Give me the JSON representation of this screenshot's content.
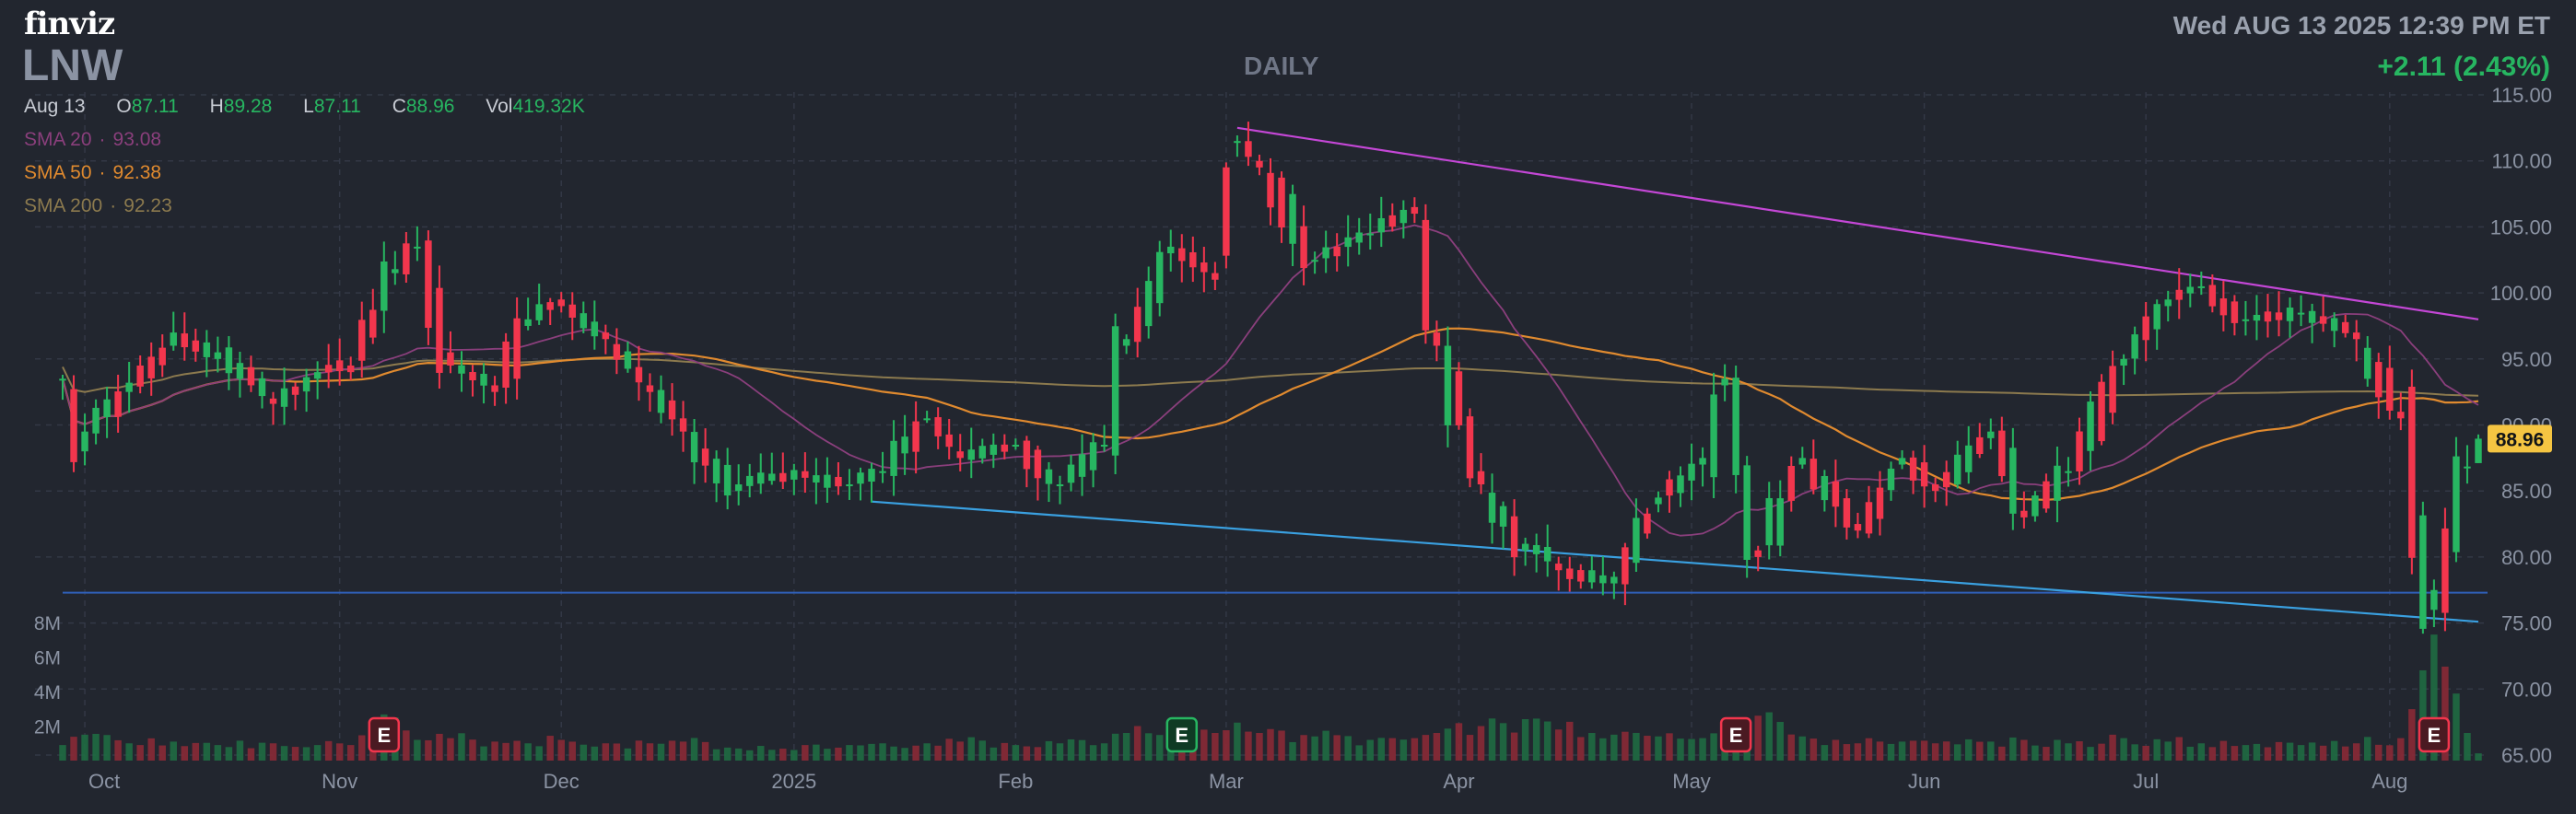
{
  "header": {
    "logo": "finviz",
    "ticker": "LNW",
    "period": "DAILY",
    "datetime": "Wed AUG 13 2025 12:39 PM ET",
    "change": "+2.11 (2.43%)"
  },
  "ohlc": {
    "date": "Aug 13",
    "open_label": "O",
    "open": "87.11",
    "high_label": "H",
    "high": "89.28",
    "low_label": "L",
    "low": "87.11",
    "close_label": "C",
    "close": "88.96",
    "vol_label": "Vol",
    "vol": "419.32K"
  },
  "indicators": {
    "sma20": {
      "label": "SMA 20",
      "value": "93.08"
    },
    "sma50": {
      "label": "SMA 50",
      "value": "92.38"
    },
    "sma200": {
      "label": "SMA 200",
      "value": "92.23"
    }
  },
  "colors": {
    "background": "#22262f",
    "up": "#27b661",
    "down": "#f2364d",
    "sma20": "#8a3f7c",
    "sma50": "#e08a2f",
    "sma200": "#8c7a4e",
    "resistance_trendline": "#c447d6",
    "support_trendline": "#3aa0e0",
    "horizontal_line": "#2f5fb8",
    "last_price_tag": "#f5c542"
  },
  "chart_data": {
    "type": "candlestick",
    "title": "LNW",
    "x_ticks": [
      "Oct",
      "Nov",
      "Dec",
      "2025",
      "Feb",
      "Mar",
      "Apr",
      "May",
      "Jun",
      "Jul",
      "Aug"
    ],
    "y_ticks": [
      "115.00",
      "110.00",
      "105.00",
      "100.00",
      "95.00",
      "90.00",
      "85.00",
      "80.00",
      "75.00",
      "70.00",
      "65.00"
    ],
    "ylim": [
      65,
      115
    ],
    "volume_ticks": [
      "8M",
      "6M",
      "4M",
      "2M"
    ],
    "volume_ylim": [
      0,
      8000000
    ],
    "last_price": "88.96",
    "earnings_marker_label": "E",
    "earnings_dates": [
      "2024-11-07",
      "2025-02-25",
      "2025-05-07",
      "2025-08-07"
    ],
    "grid": true,
    "anchors": [
      [
        "2024-09-27",
        93.5,
        93.5,
        0.9
      ],
      [
        "2024-10-01",
        88.0,
        89.5,
        1.5
      ],
      [
        "2024-10-07",
        92.5,
        93.2,
        1.0
      ],
      [
        "2024-10-11",
        96.0,
        97.0,
        1.1
      ],
      [
        "2024-10-17",
        95.0,
        95.5,
        0.9
      ],
      [
        "2024-10-24",
        92.0,
        91.6,
        1.0
      ],
      [
        "2024-10-30",
        93.5,
        94.0,
        0.9
      ],
      [
        "2024-11-04",
        94.5,
        94.0,
        0.9
      ],
      [
        "2024-11-08",
        101.5,
        101.8,
        2.5
      ],
      [
        "2024-11-12",
        103.5,
        103.5,
        1.2
      ],
      [
        "2024-11-15",
        95.5,
        94.5,
        1.3
      ],
      [
        "2024-11-21",
        93.0,
        92.5,
        1.1
      ],
      [
        "2024-11-26",
        97.5,
        98.0,
        1.0
      ],
      [
        "2024-12-02",
        99.5,
        99.0,
        1.2
      ],
      [
        "2024-12-06",
        97.0,
        96.5,
        1.0
      ],
      [
        "2024-12-12",
        93.0,
        92.5,
        1.0
      ],
      [
        "2024-12-17",
        90.5,
        89.5,
        1.1
      ],
      [
        "2024-12-24",
        85.0,
        85.5,
        0.7
      ],
      [
        "2025-01-03",
        86.5,
        86.0,
        0.9
      ],
      [
        "2025-01-10",
        85.5,
        85.5,
        0.9
      ],
      [
        "2025-01-15",
        86.5,
        86.5,
        1.0
      ],
      [
        "2025-01-22",
        90.5,
        90.5,
        1.0
      ],
      [
        "2025-01-27",
        88.0,
        87.5,
        1.1
      ],
      [
        "2025-02-03",
        88.5,
        88.5,
        0.9
      ],
      [
        "2025-02-07",
        85.5,
        85.5,
        1.0
      ],
      [
        "2025-02-13",
        88.5,
        88.5,
        1.0
      ],
      [
        "2025-02-18",
        96.0,
        96.5,
        1.6
      ],
      [
        "2025-02-24",
        103.0,
        103.5,
        1.8
      ],
      [
        "2025-02-28",
        101.5,
        101.0,
        1.6
      ],
      [
        "2025-03-04",
        111.5,
        111.5,
        2.2
      ],
      [
        "2025-03-06",
        110.0,
        109.5,
        1.6
      ],
      [
        "2025-03-13",
        102.5,
        102.5,
        1.4
      ],
      [
        "2025-03-20",
        104.5,
        104.5,
        1.2
      ],
      [
        "2025-03-26",
        106.5,
        106.0,
        1.3
      ],
      [
        "2025-03-28",
        97.0,
        96.0,
        1.6
      ],
      [
        "2025-04-03",
        86.5,
        85.5,
        2.0
      ],
      [
        "2025-04-09",
        80.5,
        81.0,
        2.4
      ],
      [
        "2025-04-14",
        79.5,
        79.0,
        1.8
      ],
      [
        "2025-04-22",
        78.0,
        78.5,
        1.5
      ],
      [
        "2025-04-28",
        84.0,
        84.5,
        1.4
      ],
      [
        "2025-05-02",
        87.0,
        87.5,
        1.3
      ],
      [
        "2025-05-06",
        93.0,
        93.5,
        1.5
      ],
      [
        "2025-05-09",
        80.5,
        80.0,
        2.6
      ],
      [
        "2025-05-15",
        87.0,
        87.5,
        1.4
      ],
      [
        "2025-05-22",
        82.5,
        82.0,
        1.0
      ],
      [
        "2025-05-29",
        87.0,
        87.5,
        1.1
      ],
      [
        "2025-06-03",
        85.5,
        85.0,
        1.0
      ],
      [
        "2025-06-10",
        89.0,
        89.5,
        1.1
      ],
      [
        "2025-06-13",
        83.5,
        83.0,
        1.2
      ],
      [
        "2025-06-20",
        86.5,
        86.5,
        1.0
      ],
      [
        "2025-06-27",
        94.5,
        95.0,
        1.3
      ],
      [
        "2025-07-03",
        99.0,
        99.5,
        1.1
      ],
      [
        "2025-07-09",
        100.5,
        100.5,
        1.0
      ],
      [
        "2025-07-15",
        98.0,
        98.0,
        0.9
      ],
      [
        "2025-07-22",
        98.5,
        98.5,
        0.9
      ],
      [
        "2025-07-29",
        97.0,
        96.5,
        1.0
      ],
      [
        "2025-08-04",
        91.0,
        90.5,
        1.3
      ],
      [
        "2025-08-07",
        76.0,
        77.5,
        7.3
      ],
      [
        "2025-08-12",
        86.85,
        86.85,
        1.6
      ],
      [
        "2025-08-13",
        88.96,
        88.96,
        0.42
      ]
    ],
    "trendlines": [
      {
        "name": "resistance",
        "from": [
          "2025-03-04",
          112.5
        ],
        "to": [
          "2025-08-13",
          98.0
        ]
      },
      {
        "name": "support",
        "from": [
          "2025-01-14",
          84.2
        ],
        "to": [
          "2025-08-13",
          75.1
        ]
      }
    ],
    "horizontal_lines": [
      77.3
    ]
  }
}
